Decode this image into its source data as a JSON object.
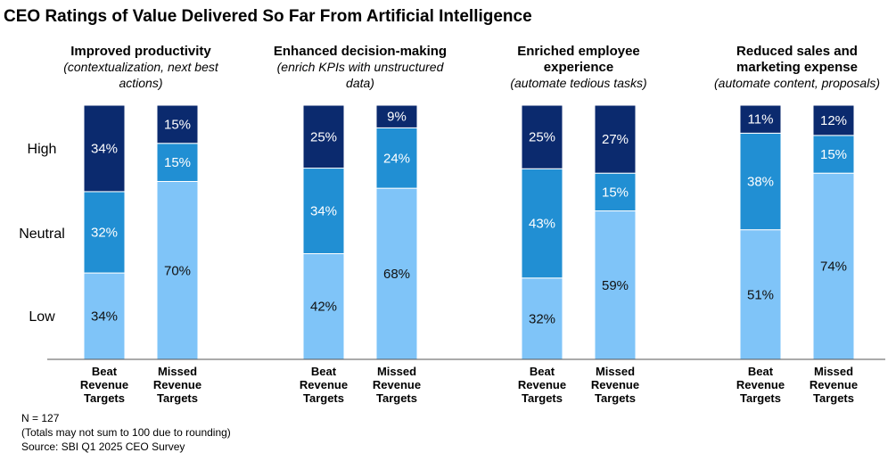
{
  "chart_data": {
    "type": "bar",
    "stacked": true,
    "title": "CEO Ratings of Value Delivered So Far From Artificial Intelligence",
    "y_levels": [
      "High",
      "Neutral",
      "Low"
    ],
    "stack_order": [
      "Low",
      "Neutral",
      "High"
    ],
    "colors": {
      "Low": "#7fc4f8",
      "Neutral": "#218fd3",
      "High": "#0b2a6e",
      "axis": "#555555"
    },
    "categories": [
      "Beat Revenue Targets",
      "Missed Revenue Targets"
    ],
    "category_lines": [
      [
        "Beat",
        "Revenue",
        "Targets"
      ],
      [
        "Missed",
        "Revenue",
        "Targets"
      ]
    ],
    "panels": [
      {
        "title_lines": [
          "Improved productivity"
        ],
        "subtitle_lines": [
          "(contextualization, next best",
          "actions)"
        ],
        "bars": [
          {
            "category": "Beat Revenue Targets",
            "Low": 34,
            "Neutral": 32,
            "High": 34,
            "labels": {
              "Low": "34%",
              "Neutral": "32%",
              "High": "34%"
            }
          },
          {
            "category": "Missed Revenue Targets",
            "Low": 70,
            "Neutral": 15,
            "High": 15,
            "labels": {
              "Low": "70%",
              "Neutral": "15%",
              "High": "15%"
            }
          }
        ]
      },
      {
        "title_lines": [
          "Enhanced decision-making"
        ],
        "subtitle_lines": [
          "(enrich KPIs with unstructured",
          "data)"
        ],
        "bars": [
          {
            "category": "Beat Revenue Targets",
            "Low": 42,
            "Neutral": 34,
            "High": 25,
            "labels": {
              "Low": "42%",
              "Neutral": "34%",
              "High": "25%"
            }
          },
          {
            "category": "Missed Revenue Targets",
            "Low": 68,
            "Neutral": 24,
            "High": 9,
            "labels": {
              "Low": "68%",
              "Neutral": "24%",
              "High": "9%"
            }
          }
        ]
      },
      {
        "title_lines": [
          "Enriched employee",
          "experience"
        ],
        "subtitle_lines": [
          "(automate tedious tasks)"
        ],
        "bars": [
          {
            "category": "Beat Revenue Targets",
            "Low": 32,
            "Neutral": 43,
            "High": 25,
            "labels": {
              "Low": "32%",
              "Neutral": "43%",
              "High": "25%"
            }
          },
          {
            "category": "Missed Revenue Targets",
            "Low": 59,
            "Neutral": 15,
            "High": 27,
            "labels": {
              "Low": "59%",
              "Neutral": "15%",
              "High": "27%"
            }
          }
        ]
      },
      {
        "title_lines": [
          "Reduced sales and",
          "marketing expense"
        ],
        "subtitle_lines": [
          "(automate content, proposals)"
        ],
        "bars": [
          {
            "category": "Beat Revenue Targets",
            "Low": 51,
            "Neutral": 38,
            "High": 11,
            "labels": {
              "Low": "51%",
              "Neutral": "38%",
              "High": "11%"
            }
          },
          {
            "category": "Missed Revenue Targets",
            "Low": 74,
            "Neutral": 15,
            "High": 12,
            "labels": {
              "Low": "74%",
              "Neutral": "15%",
              "High": "12%"
            }
          }
        ]
      }
    ],
    "footnotes": [
      "N = 127",
      "(Totals may not sum to 100 due to rounding)",
      "Source: SBI Q1 2025 CEO Survey"
    ]
  }
}
